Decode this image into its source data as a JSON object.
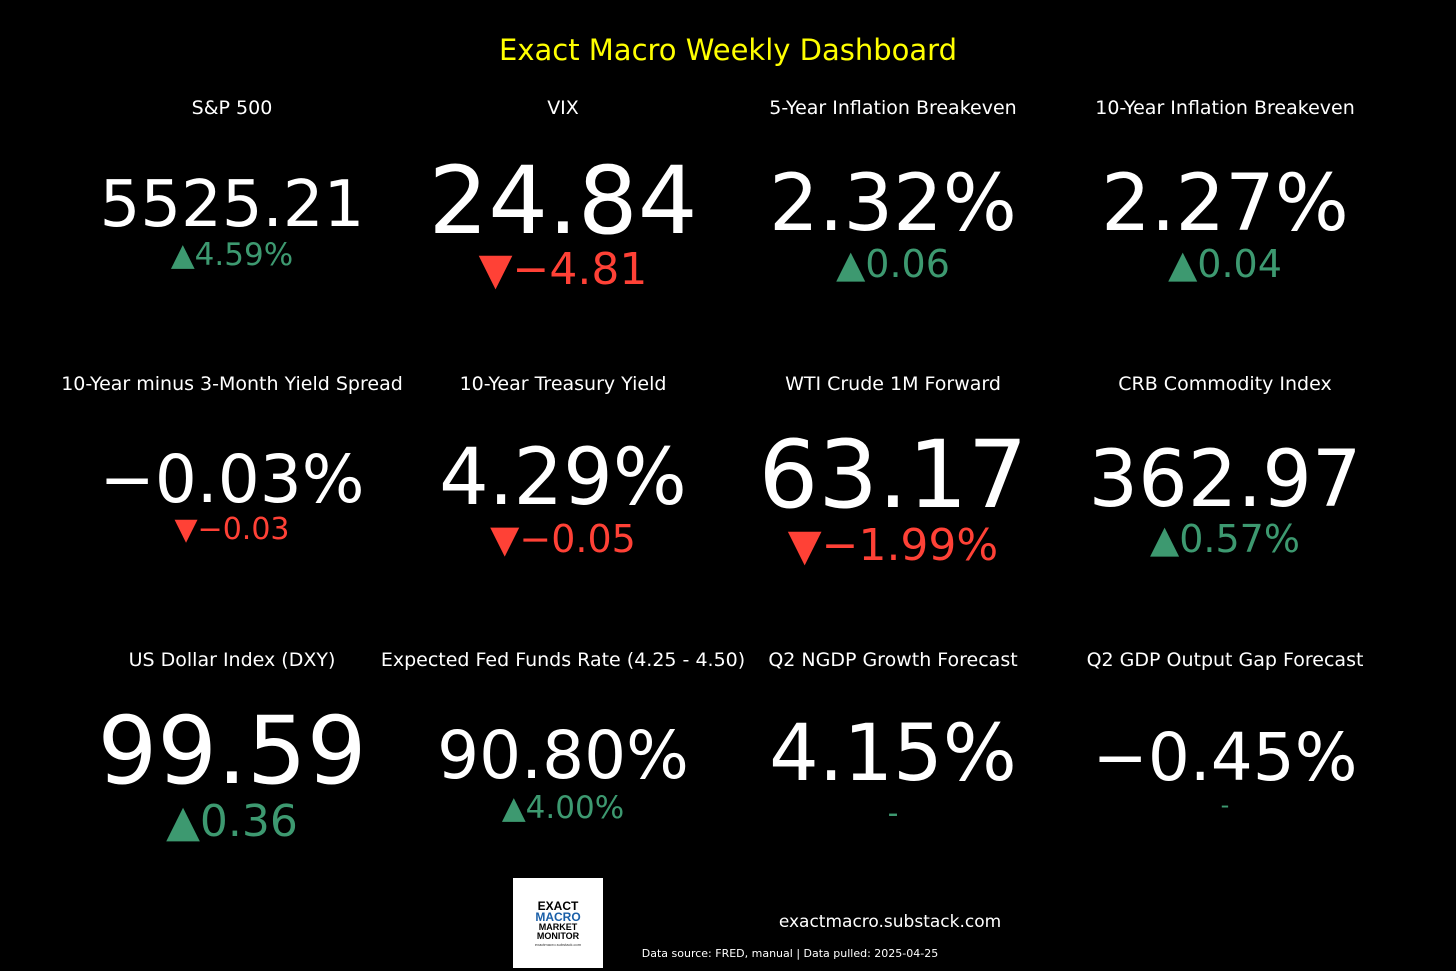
{
  "title": "Exact Macro Weekly Dashboard",
  "tiles": [
    {
      "label": "S&P 500",
      "value": "5525.21",
      "change": "▲4.59%",
      "direction": "up"
    },
    {
      "label": "VIX",
      "value": "24.84",
      "change": "▼−4.81",
      "direction": "down"
    },
    {
      "label": "5-Year Inflation Breakeven",
      "value": "2.32%",
      "change": "▲0.06",
      "direction": "up"
    },
    {
      "label": "10-Year Inflation Breakeven",
      "value": "2.27%",
      "change": "▲0.04",
      "direction": "up"
    },
    {
      "label": "10-Year minus 3-Month Yield Spread",
      "value": "−0.03%",
      "change": "▼−0.03",
      "direction": "down"
    },
    {
      "label": "10-Year Treasury Yield",
      "value": "4.29%",
      "change": "▼−0.05",
      "direction": "down"
    },
    {
      "label": "WTI Crude 1M Forward",
      "value": "63.17",
      "change": "▼−1.99%",
      "direction": "down"
    },
    {
      "label": "CRB Commodity Index",
      "value": "362.97",
      "change": "▲0.57%",
      "direction": "up"
    },
    {
      "label": "US Dollar Index (DXY)",
      "value": "99.59",
      "change": "▲0.36",
      "direction": "up"
    },
    {
      "label": "Expected Fed Funds Rate (4.25 - 4.50)",
      "value": "90.80%",
      "change": "▲4.00%",
      "direction": "up"
    },
    {
      "label": "Q2 NGDP Growth Forecast",
      "value": "4.15%",
      "change": "-",
      "direction": "flat"
    },
    {
      "label": "Q2 GDP Output Gap Forecast",
      "value": "−0.45%",
      "change": "-",
      "direction": "flat"
    }
  ],
  "logo": {
    "line1": "EXACT",
    "line2": "MACRO",
    "line3": "MARKET",
    "line4": "MONITOR",
    "line5": "exactmacro.substack.com"
  },
  "footer": {
    "site": "exactmacro.substack.com",
    "source": "Data source: FRED, manual | Data pulled: 2025-04-25"
  },
  "colors": {
    "title": "#ffff00",
    "up": "#3d9970",
    "down": "#ff4136",
    "background": "#000000",
    "value": "#ffffff"
  }
}
